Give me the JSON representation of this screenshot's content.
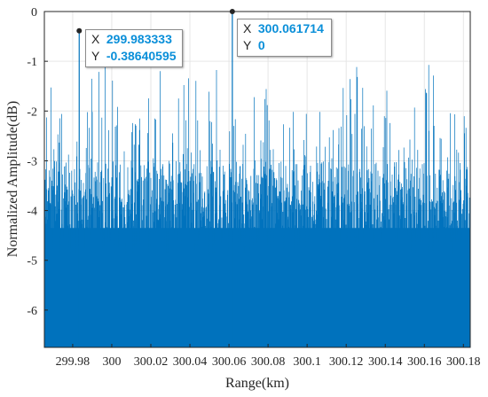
{
  "chart_data": {
    "type": "line",
    "title": "",
    "xlabel": "Range(km)",
    "ylabel": "Normalized Amplitude(dB)",
    "xlim": [
      299.9655,
      300.1835
    ],
    "ylim": [
      -6.75,
      0
    ],
    "x_ticks": [
      299.98,
      300,
      300.02,
      300.04,
      300.06,
      300.08,
      300.1,
      300.12,
      300.14,
      300.16,
      300.18
    ],
    "x_tick_labels": [
      "299.98",
      "300",
      "300.02",
      "300.04",
      "300.06",
      "300.08",
      "300.1",
      "300.12",
      "300.14",
      "300.16",
      "300.18"
    ],
    "y_ticks": [
      0,
      -1,
      -2,
      -3,
      -4,
      -5,
      -6
    ],
    "y_tick_labels": [
      "0",
      "-1",
      "-2",
      "-3",
      "-4",
      "-5",
      "-6"
    ],
    "grid": true,
    "series_color": "#0072bd",
    "peaks": [
      {
        "x": 299.983333,
        "y": -0.38640595
      },
      {
        "x": 300.061714,
        "y": 0
      }
    ],
    "datatips": [
      {
        "x_key": "X",
        "x_text": "299.983333",
        "y_key": "Y",
        "y_text": "-0.38640595"
      },
      {
        "x_key": "X",
        "x_text": "300.061714",
        "y_key": "Y",
        "y_text": "0"
      }
    ]
  }
}
